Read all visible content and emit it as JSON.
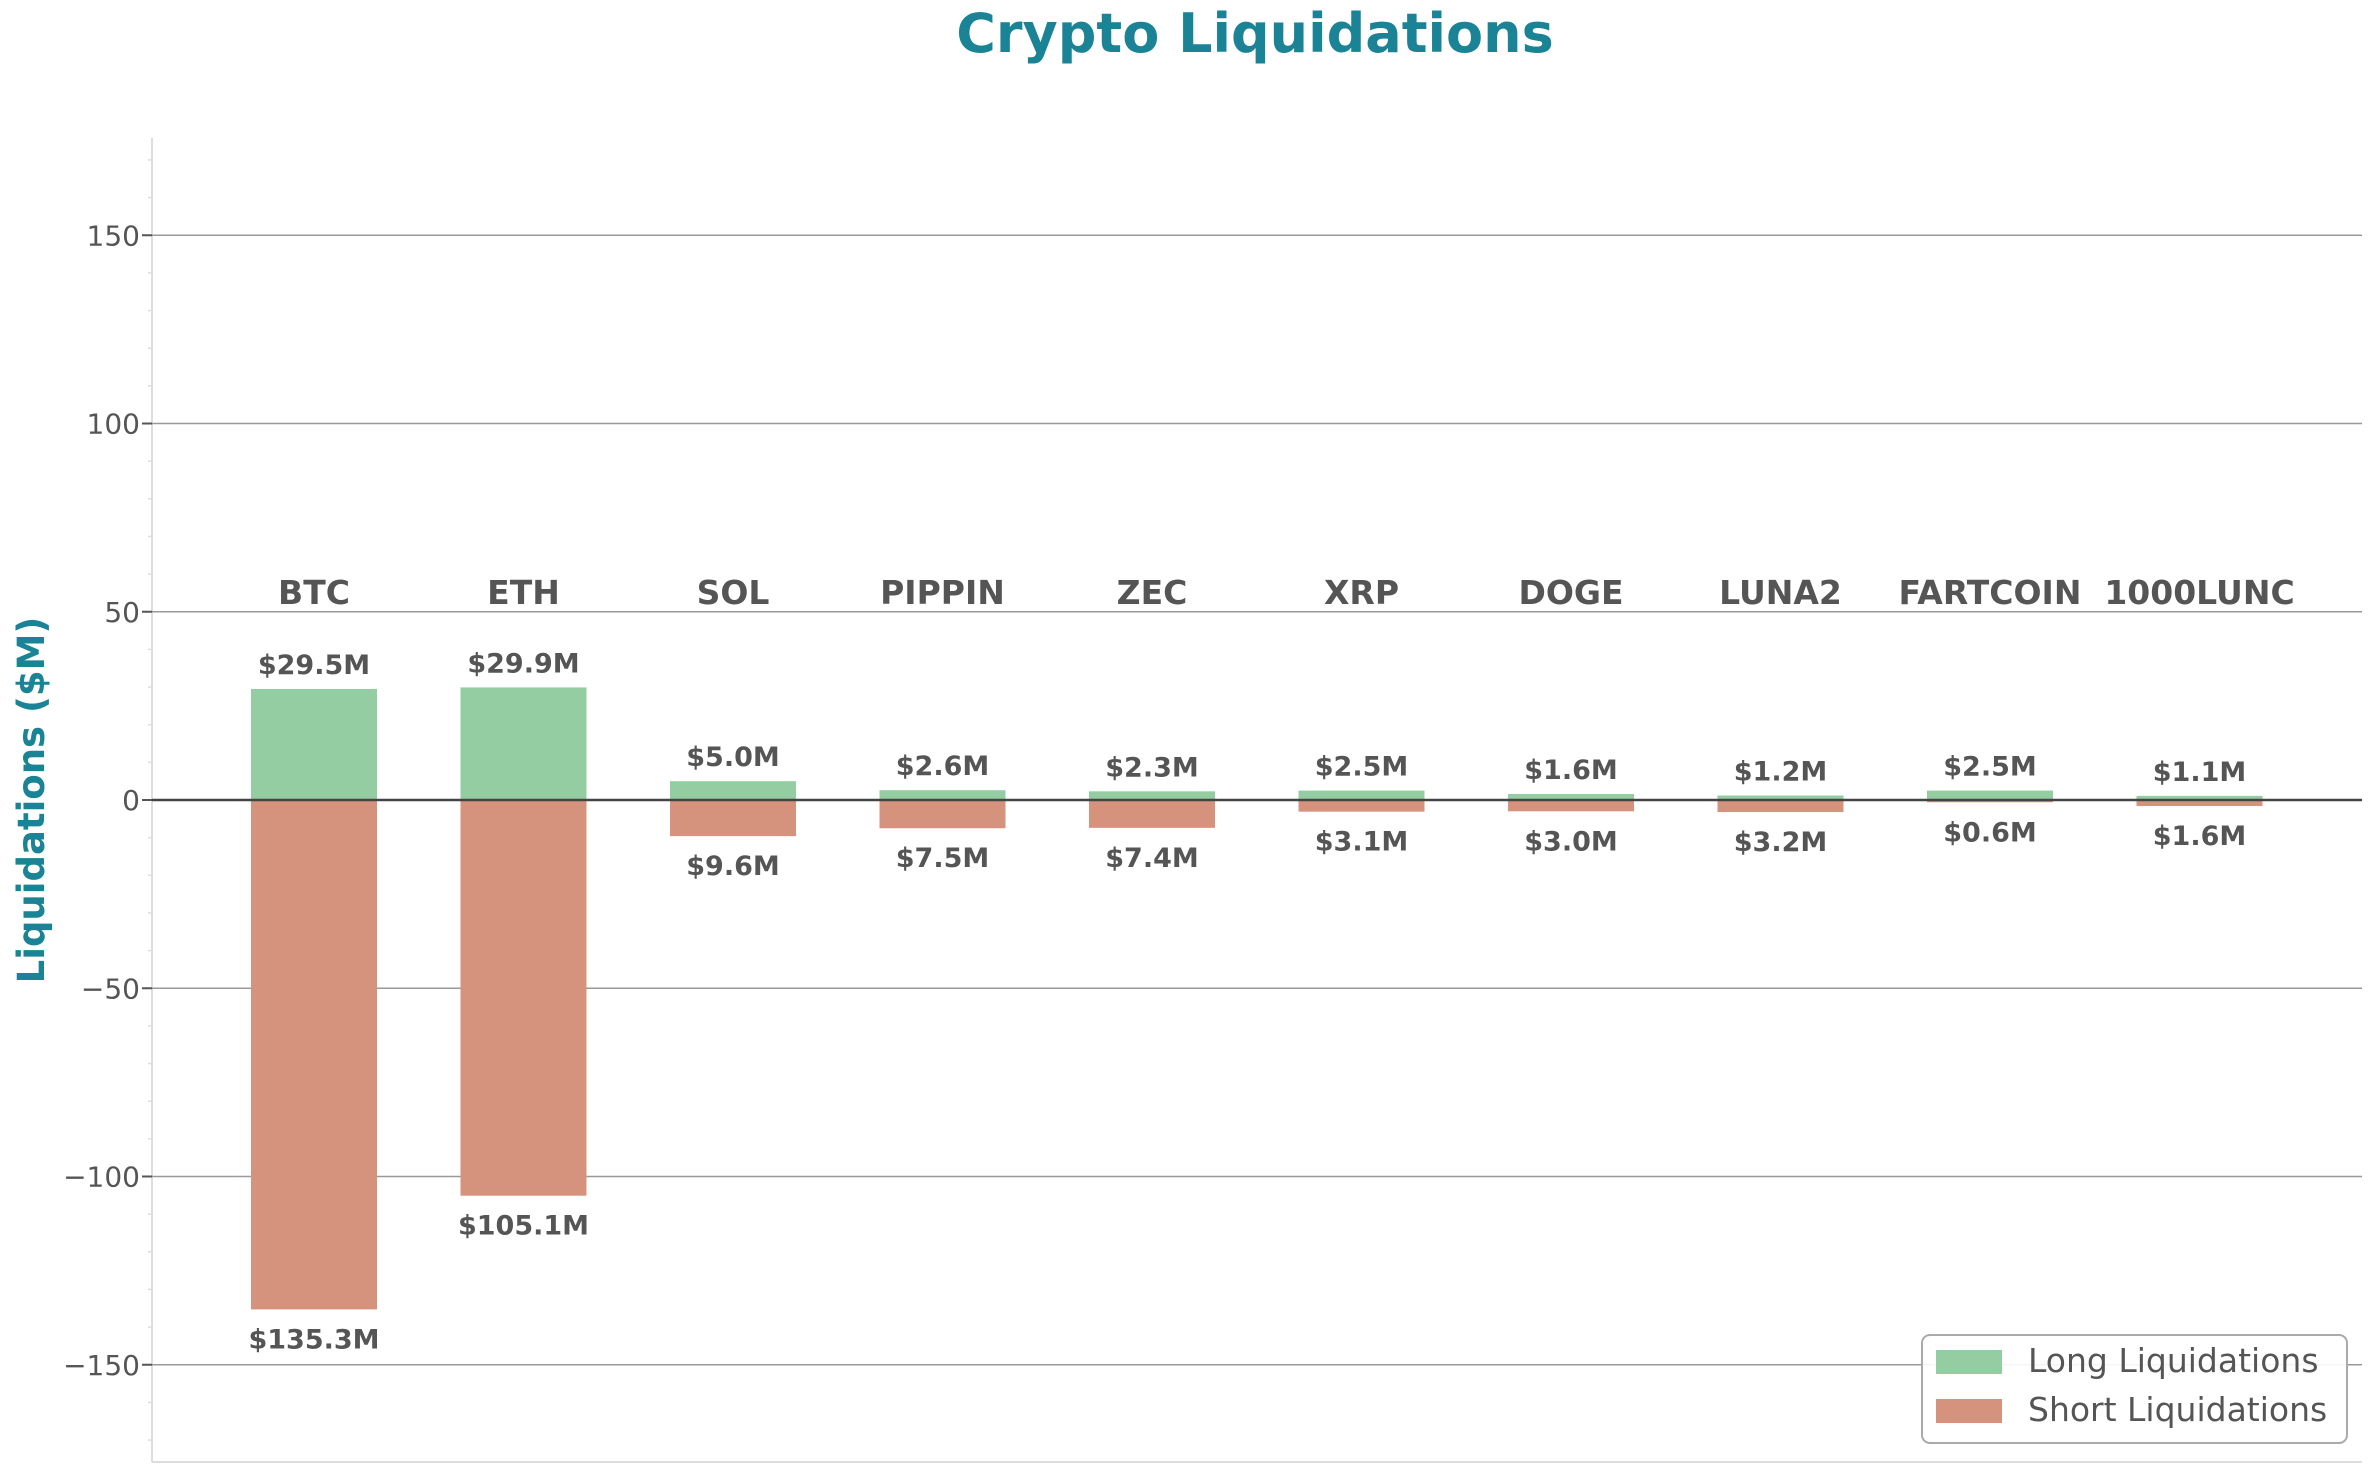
{
  "chart_data": {
    "type": "bar",
    "title": "Crypto Liquidations",
    "ylabel": "Liquidations ($M)",
    "xlabel": "",
    "ylim": [
      -175,
      177
    ],
    "yticks": [
      150,
      100,
      50,
      0,
      -50,
      -100,
      -150
    ],
    "ytick_labels": [
      "150",
      "100",
      "50",
      "0",
      "−50",
      "−100",
      "−150"
    ],
    "grid": true,
    "legend_position": "bottom-right",
    "categories": [
      "BTC",
      "ETH",
      "SOL",
      "PIPPIN",
      "ZEC",
      "XRP",
      "DOGE",
      "LUNA2",
      "FARTCOIN",
      "1000LUNC"
    ],
    "series": [
      {
        "name": "Long Liquidations",
        "color": "#94cda1",
        "values": [
          29.5,
          29.9,
          5.0,
          2.6,
          2.3,
          2.5,
          1.6,
          1.2,
          2.5,
          1.1
        ],
        "labels": [
          "$29.5M",
          "$29.9M",
          "$5.0M",
          "$2.6M",
          "$2.3M",
          "$2.5M",
          "$1.6M",
          "$1.2M",
          "$2.5M",
          "$1.1M"
        ]
      },
      {
        "name": "Short Liquidations",
        "color": "#d5937d",
        "values": [
          -135.3,
          -105.1,
          -9.6,
          -7.5,
          -7.4,
          -3.1,
          -3.0,
          -3.2,
          -0.6,
          -1.6
        ],
        "labels": [
          "$135.3M",
          "$105.1M",
          "$9.6M",
          "$7.5M",
          "$7.4M",
          "$3.1M",
          "$3.0M",
          "$3.2M",
          "$0.6M",
          "$1.6M"
        ]
      }
    ],
    "colors": {
      "title": "#1a8396",
      "ylabel": "#1a8396",
      "text": "#555555",
      "grid": "#999999",
      "zero_line": "#444444"
    }
  }
}
